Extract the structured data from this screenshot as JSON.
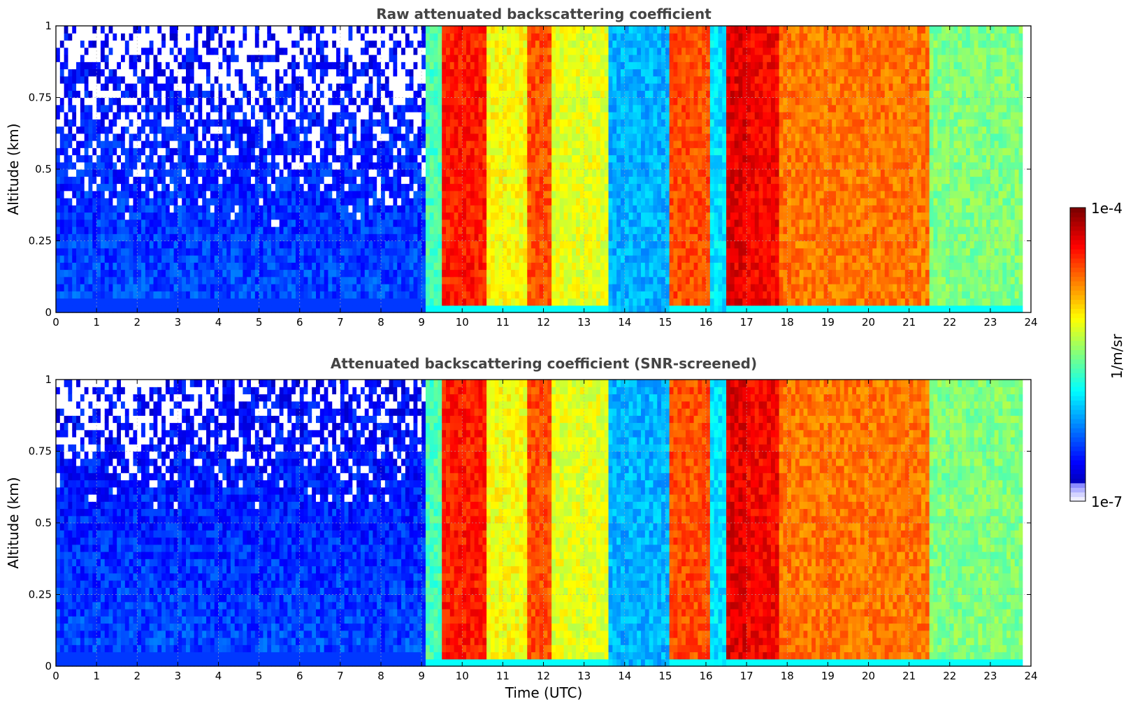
{
  "chart_data": [
    {
      "type": "heatmap",
      "title": "Raw attenuated backscattering coefficient",
      "xlabel": "",
      "ylabel": "Altitude (km)",
      "xlim": [
        0,
        24
      ],
      "ylim": [
        0,
        1
      ],
      "xticks": [
        "0",
        "1",
        "2",
        "3",
        "4",
        "5",
        "6",
        "7",
        "8",
        "9",
        "10",
        "11",
        "12",
        "13",
        "14",
        "15",
        "16",
        "17",
        "18",
        "19",
        "20",
        "21",
        "22",
        "23",
        "24"
      ],
      "yticks": [
        "0",
        "0.25",
        "0.5",
        "0.75",
        "1"
      ],
      "grid": true,
      "time_profile": [
        {
          "t": [
            0,
            9.1
          ],
          "level": 0.1,
          "note": "clear air, noisy low signal"
        },
        {
          "t": [
            9.1,
            9.5
          ],
          "level": 0.45
        },
        {
          "t": [
            9.5,
            10.6
          ],
          "level": 0.85
        },
        {
          "t": [
            10.6,
            11.6
          ],
          "level": 0.62
        },
        {
          "t": [
            11.6,
            12.2
          ],
          "level": 0.8
        },
        {
          "t": [
            12.2,
            13.6
          ],
          "level": 0.6
        },
        {
          "t": [
            13.6,
            15.1
          ],
          "level": 0.3
        },
        {
          "t": [
            15.1,
            16.1
          ],
          "level": 0.8
        },
        {
          "t": [
            16.1,
            16.5
          ],
          "level": 0.35
        },
        {
          "t": [
            16.5,
            17.0
          ],
          "level": 0.9
        },
        {
          "t": [
            17.0,
            17.8
          ],
          "level": 0.88
        },
        {
          "t": [
            17.8,
            21.5
          ],
          "level": 0.76
        },
        {
          "t": [
            21.5,
            23.8
          ],
          "level": 0.5
        }
      ]
    },
    {
      "type": "heatmap",
      "title": "Attenuated backscattering coefficient (SNR-screened)",
      "xlabel": "Time (UTC)",
      "ylabel": "Altitude (km)",
      "xlim": [
        0,
        24
      ],
      "ylim": [
        0,
        1
      ],
      "xticks": [
        "0",
        "1",
        "2",
        "3",
        "4",
        "5",
        "6",
        "7",
        "8",
        "9",
        "10",
        "11",
        "12",
        "13",
        "14",
        "15",
        "16",
        "17",
        "18",
        "19",
        "20",
        "21",
        "22",
        "23",
        "24"
      ],
      "yticks": [
        "0",
        "0.25",
        "0.5",
        "0.75",
        "1"
      ],
      "grid": true,
      "screened_value_color": "#000000"
    }
  ],
  "colorbar": {
    "label": "1/m/sr",
    "min_label": "1e-7",
    "max_label": "1e-4",
    "min": 1e-07,
    "max": 0.0001,
    "scale": "log",
    "colormap": "jet"
  }
}
